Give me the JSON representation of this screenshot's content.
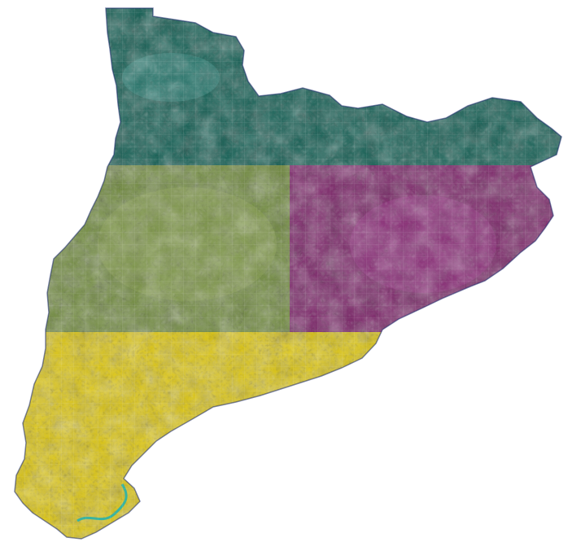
{
  "map": {
    "background": "#ffffff",
    "zones": [
      {
        "name": "north",
        "color": "#0a5a4e",
        "edge": "#0a3d5a"
      },
      {
        "name": "center-west",
        "color": "#6f8a3a",
        "edge": "#587a2c"
      },
      {
        "name": "center-east",
        "color": "#7a1f66",
        "edge": "#3a1a7a"
      },
      {
        "name": "south",
        "color": "#e0c80a",
        "edge": "#b8a008"
      }
    ],
    "grid": true,
    "grid_color": "#ffffff",
    "river_color": "#3ab3a0"
  }
}
